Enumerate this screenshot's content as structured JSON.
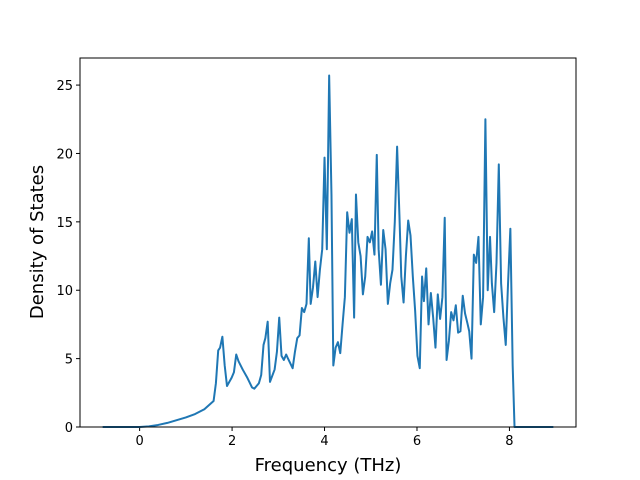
{
  "chart_data": {
    "type": "line",
    "xlabel": "Frequency (THz)",
    "ylabel": "Density of States",
    "color": "#1f77b4",
    "x": [
      -0.8,
      0,
      0.2,
      0.4,
      0.6,
      0.8,
      1.0,
      1.2,
      1.4,
      1.5,
      1.6,
      1.65,
      1.7,
      1.74,
      1.79,
      1.84,
      1.89,
      1.99,
      2.04,
      2.09,
      2.14,
      2.23,
      2.33,
      2.43,
      2.48,
      2.53,
      2.58,
      2.63,
      2.68,
      2.72,
      2.77,
      2.82,
      2.92,
      2.97,
      3.02,
      3.07,
      3.12,
      3.17,
      3.21,
      3.31,
      3.36,
      3.41,
      3.46,
      3.51,
      3.56,
      3.61,
      3.66,
      3.7,
      3.75,
      3.8,
      3.85,
      3.9,
      3.95,
      4.0,
      4.05,
      4.1,
      4.15,
      4.19,
      4.24,
      4.29,
      4.34,
      4.39,
      4.44,
      4.49,
      4.54,
      4.59,
      4.64,
      4.68,
      4.73,
      4.78,
      4.83,
      4.88,
      4.93,
      4.98,
      5.03,
      5.08,
      5.13,
      5.17,
      5.22,
      5.27,
      5.32,
      5.37,
      5.42,
      5.47,
      5.52,
      5.57,
      5.62,
      5.66,
      5.71,
      5.76,
      5.81,
      5.86,
      5.91,
      5.96,
      6.01,
      6.06,
      6.11,
      6.15,
      6.2,
      6.25,
      6.3,
      6.35,
      6.4,
      6.45,
      6.5,
      6.55,
      6.6,
      6.64,
      6.69,
      6.74,
      6.79,
      6.84,
      6.89,
      6.94,
      6.99,
      7.04,
      7.09,
      7.13,
      7.18,
      7.23,
      7.28,
      7.33,
      7.38,
      7.43,
      7.48,
      7.53,
      7.58,
      7.62,
      7.67,
      7.72,
      7.77,
      7.82,
      7.87,
      7.92,
      7.97,
      8.02,
      8.07,
      8.11,
      8.95
    ],
    "values": [
      0,
      0,
      0.05,
      0.15,
      0.3,
      0.5,
      0.7,
      0.95,
      1.3,
      1.6,
      1.9,
      3.2,
      5.6,
      5.8,
      6.6,
      4.5,
      3.0,
      3.6,
      4.0,
      5.3,
      4.8,
      4.2,
      3.6,
      2.9,
      2.8,
      3.0,
      3.2,
      3.8,
      6.0,
      6.5,
      7.7,
      3.3,
      4.2,
      5.5,
      8.0,
      5.2,
      4.9,
      5.3,
      5.0,
      4.3,
      5.5,
      6.5,
      6.7,
      8.7,
      8.4,
      9.0,
      13.8,
      9.0,
      10.2,
      12.1,
      9.5,
      11.5,
      13.0,
      19.7,
      13.0,
      25.7,
      17.0,
      4.5,
      5.8,
      6.2,
      5.4,
      7.5,
      9.5,
      15.7,
      14.2,
      15.2,
      8.0,
      17.0,
      13.5,
      12.5,
      9.7,
      11.0,
      13.9,
      13.5,
      14.3,
      12.6,
      19.9,
      13.0,
      10.4,
      14.4,
      13.0,
      9.0,
      10.5,
      11.5,
      15.0,
      20.5,
      15.5,
      11.0,
      9.1,
      12.5,
      15.1,
      14.0,
      11.0,
      8.5,
      5.2,
      4.3,
      11.0,
      9.2,
      11.6,
      7.5,
      9.8,
      8.0,
      5.8,
      9.7,
      7.9,
      9.5,
      15.3,
      4.9,
      6.3,
      8.4,
      7.8,
      8.9,
      6.9,
      7.0,
      9.6,
      8.3,
      7.6,
      7.0,
      5.0,
      12.6,
      12.0,
      13.9,
      7.5,
      9.5,
      22.5,
      10.0,
      13.9,
      10.5,
      8.4,
      12.0,
      19.2,
      10.5,
      8.0,
      6.0,
      10.5,
      14.5,
      4.5,
      0,
      0
    ],
    "xlim": [
      -1.29,
      9.44
    ],
    "ylim": [
      0,
      26.98
    ],
    "xticks": [
      0,
      2,
      4,
      6,
      8
    ],
    "yticks": [
      0,
      5,
      10,
      15,
      20,
      25
    ]
  }
}
